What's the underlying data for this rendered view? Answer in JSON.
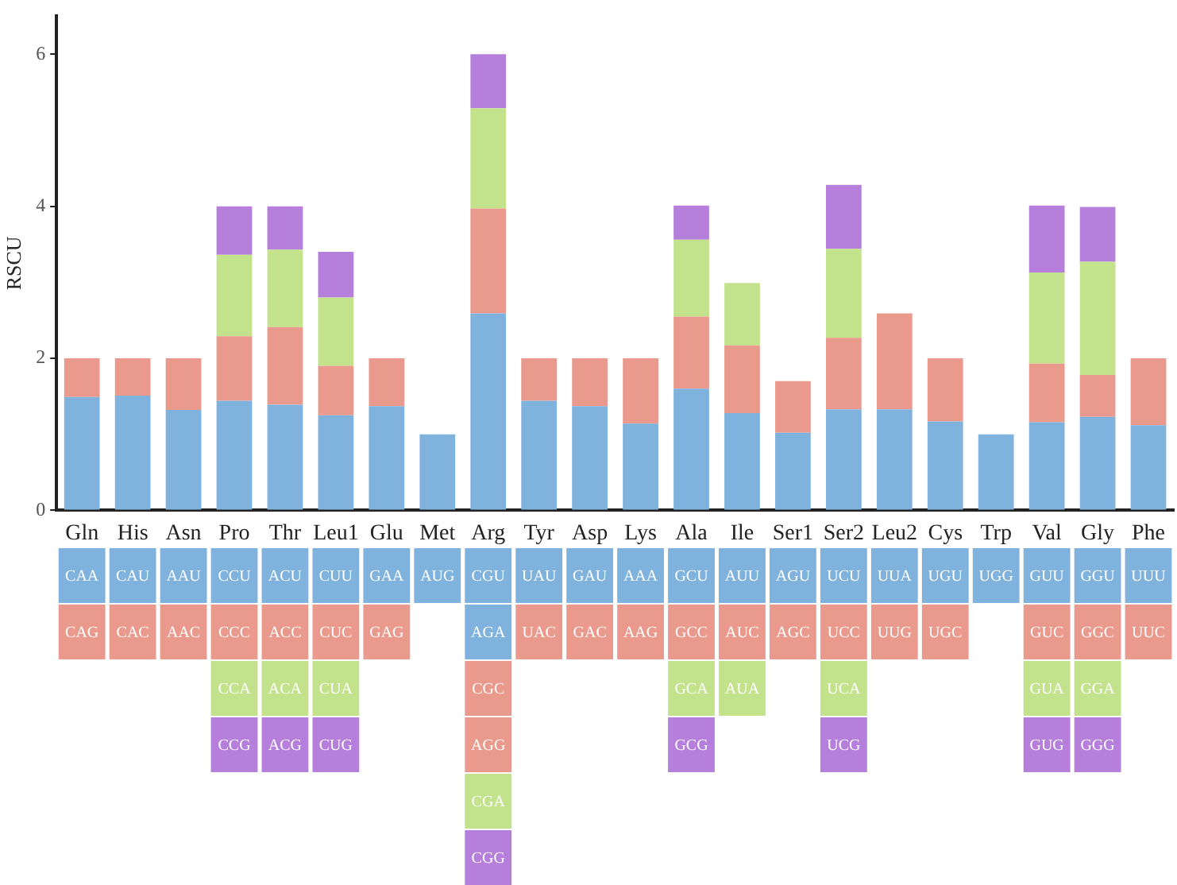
{
  "chart_data": {
    "type": "bar",
    "stacked": true,
    "ylabel": "RSCU",
    "ylim": [
      0,
      6.5
    ],
    "yticks": [
      0,
      2,
      4,
      6
    ],
    "grid": false,
    "legend": false,
    "categories": [
      "Gln",
      "His",
      "Asn",
      "Pro",
      "Thr",
      "Leu1",
      "Glu",
      "Met",
      "Arg",
      "Tyr",
      "Asp",
      "Lys",
      "Ala",
      "Ile",
      "Ser1",
      "Ser2",
      "Leu2",
      "Cys",
      "Trp",
      "Val",
      "Gly",
      "Phe"
    ],
    "series": [
      {
        "color": "#7fb2dd",
        "values": [
          1.49,
          1.51,
          1.32,
          1.44,
          1.39,
          1.25,
          1.37,
          1,
          2.59,
          1.44,
          1.37,
          1.14,
          1.6,
          1.28,
          1.02,
          1.33,
          1.33,
          1.17,
          1,
          1.16,
          1.23,
          1.12
        ]
      },
      {
        "color": "#e99a8c",
        "values": [
          0.51,
          0.49,
          0.68,
          0.85,
          1.02,
          0.65,
          0.63,
          null,
          1.38,
          0.56,
          0.63,
          0.86,
          0.95,
          0.89,
          0.68,
          0.94,
          1.26,
          0.83,
          null,
          0.77,
          0.55,
          0.88
        ]
      },
      {
        "color": "#c2e38c",
        "values": [
          null,
          null,
          null,
          1.07,
          1.02,
          0.9,
          null,
          null,
          1.32,
          null,
          null,
          null,
          1.01,
          0.82,
          null,
          1.17,
          null,
          null,
          null,
          1.2,
          1.49,
          null
        ]
      },
      {
        "color": "#b57fdb",
        "values": [
          null,
          null,
          null,
          0.64,
          0.57,
          0.6,
          null,
          null,
          0.71,
          null,
          null,
          null,
          0.45,
          null,
          null,
          0.84,
          null,
          null,
          null,
          0.88,
          0.72,
          null
        ]
      }
    ],
    "annotations": [
      "CAA",
      "CAG",
      "CAU",
      "CAC",
      "AAU",
      "AAC",
      "CCU",
      "CCC",
      "CCA",
      "CCG",
      "ACU",
      "ACC",
      "ACA",
      "ACG",
      "CUU",
      "CUC",
      "CUA",
      "CUG",
      "GAA",
      "GAG",
      "AUG",
      "CGU",
      "AGA",
      "CGC",
      "AGG",
      "CGA",
      "CGG",
      "UAU",
      "UAC",
      "GAU",
      "GAC",
      "AAA",
      "AAG",
      "GCU",
      "GCC",
      "GCA",
      "GCG",
      "AUU",
      "AUC",
      "AUA",
      "AGU",
      "AGC",
      "UCU",
      "UCC",
      "UCA",
      "UCG",
      "UUA",
      "UUG",
      "UGU",
      "UGC",
      "UGG",
      "GUU",
      "GUC",
      "GUA",
      "GUG",
      "GGU",
      "GGC",
      "GGA",
      "GGG",
      "UUU",
      "UUC"
    ]
  }
}
